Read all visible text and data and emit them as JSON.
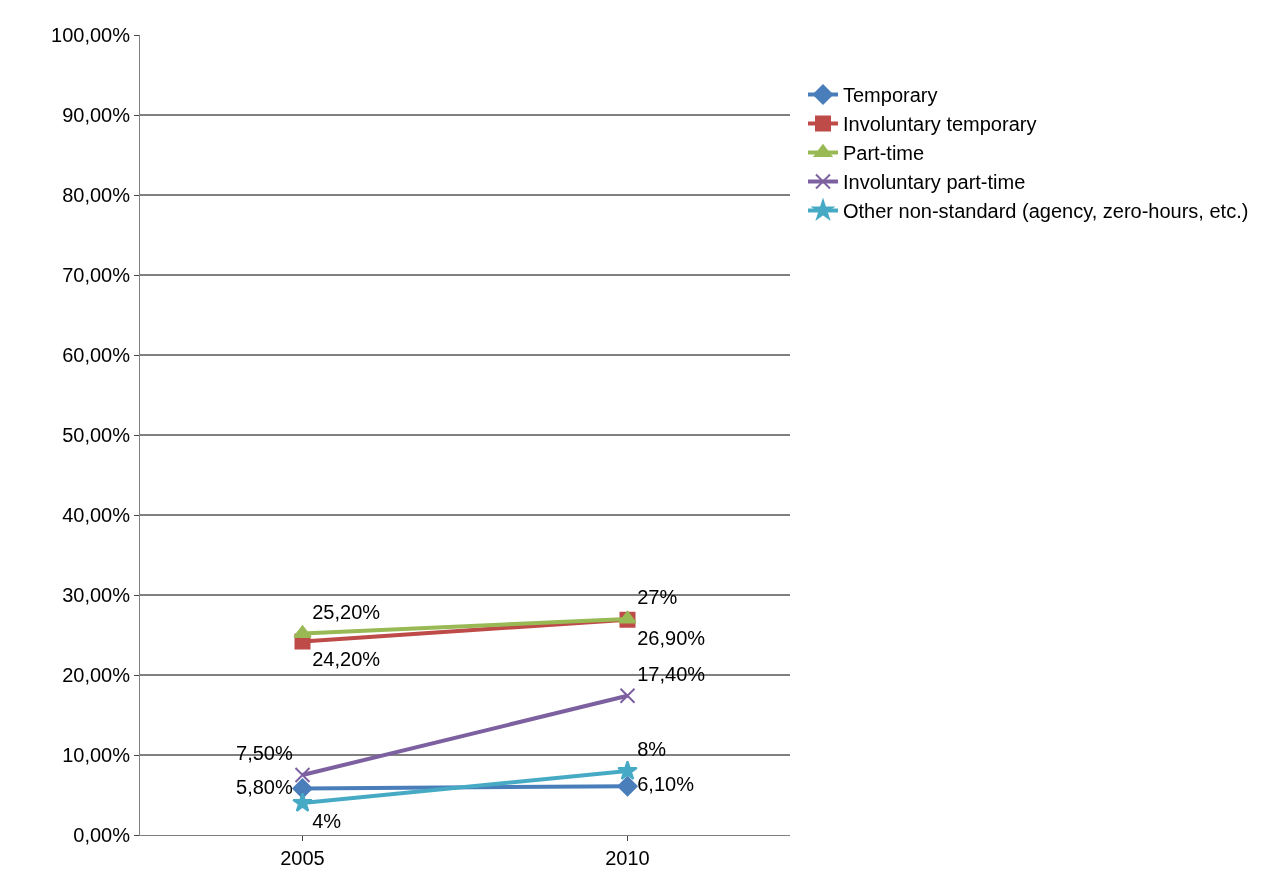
{
  "chart_data": {
    "type": "line",
    "categories": [
      "2005",
      "2010"
    ],
    "series": [
      {
        "name": "Temporary",
        "color": "#4a7ebb",
        "marker": "diamond",
        "values": [
          5.8,
          6.1
        ],
        "value_labels": [
          "5,80%",
          "6,10%"
        ]
      },
      {
        "name": "Involuntary temporary",
        "color": "#be4b48",
        "marker": "square",
        "values": [
          24.2,
          26.9
        ],
        "value_labels": [
          "24,20%",
          "26,90%"
        ]
      },
      {
        "name": "Part-time",
        "color": "#98b954",
        "marker": "triangle",
        "values": [
          25.2,
          27
        ],
        "value_labels": [
          "25,20%",
          "27%"
        ]
      },
      {
        "name": "Involuntary part-time",
        "color": "#7d60a0",
        "marker": "cross",
        "values": [
          7.5,
          17.4
        ],
        "value_labels": [
          "7,50%",
          "17,40%"
        ]
      },
      {
        "name": "Other non-standard (agency, zero-hours, etc.)",
        "color": "#46aac5",
        "marker": "star",
        "values": [
          4,
          8
        ],
        "value_labels": [
          "4%",
          "8%"
        ]
      }
    ],
    "ylim": [
      0,
      100
    ],
    "yticks": [
      {
        "value": 0,
        "label": "0,00%"
      },
      {
        "value": 10,
        "label": "10,00%"
      },
      {
        "value": 20,
        "label": "20,00%"
      },
      {
        "value": 30,
        "label": "30,00%"
      },
      {
        "value": 40,
        "label": "40,00%"
      },
      {
        "value": 50,
        "label": "50,00%"
      },
      {
        "value": 60,
        "label": "60,00%"
      },
      {
        "value": 70,
        "label": "70,00%"
      },
      {
        "value": 80,
        "label": "80,00%"
      },
      {
        "value": 90,
        "label": "90,00%"
      },
      {
        "value": 100,
        "label": "100,00%"
      }
    ],
    "grid": "y",
    "legend": "right",
    "line_style": "solid"
  }
}
